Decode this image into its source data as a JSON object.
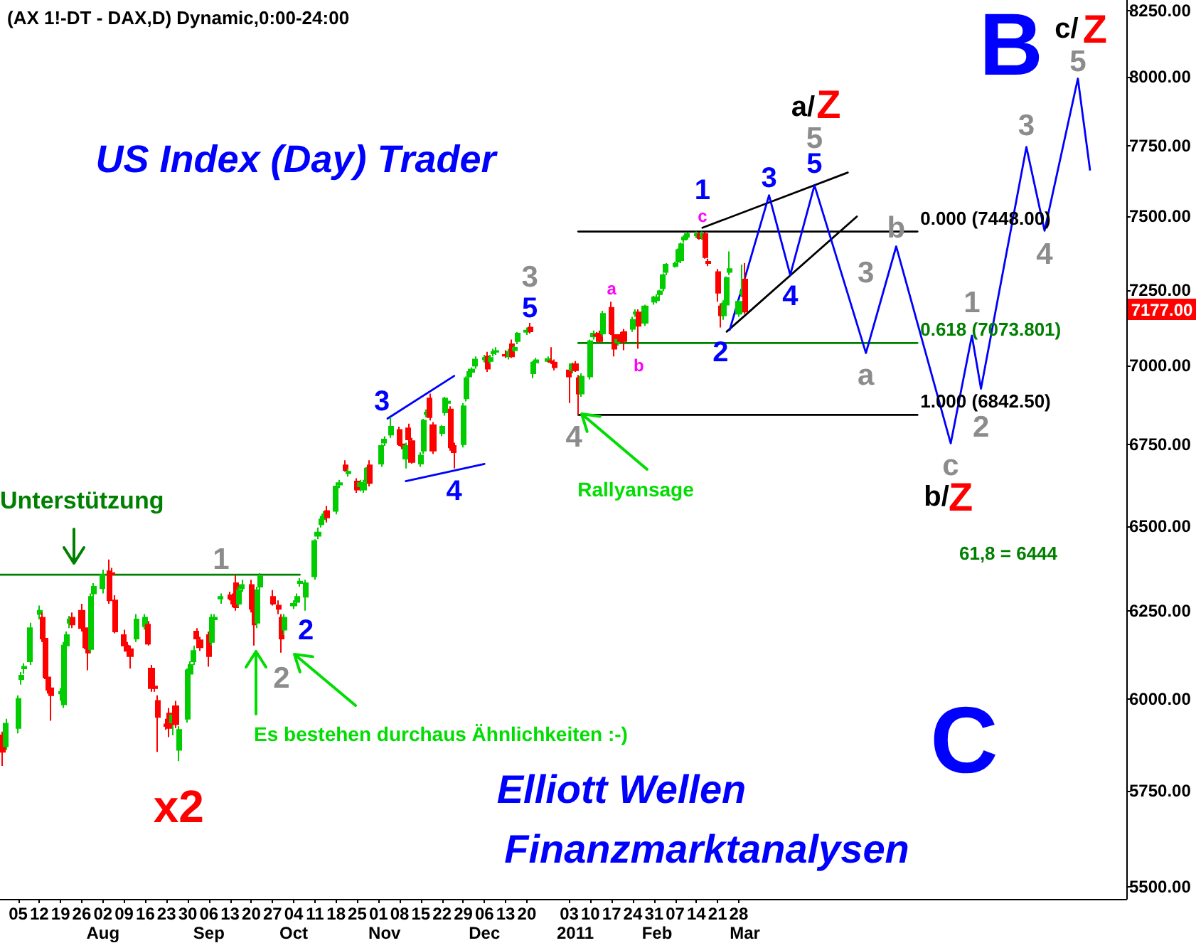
{
  "chart_data": {
    "type": "candlestick",
    "title": "(AX 1!-DT - DAX,D) Dynamic,0:00-24:00",
    "log": true,
    "marker": "none",
    "xlim": [
      "2010-06-29",
      "2011-07-06"
    ],
    "ylim": [
      5470,
      8290
    ],
    "xticks": [
      {
        "value": "2010-07-05",
        "label": "05"
      },
      {
        "value": "2010-07-12",
        "label": "12"
      },
      {
        "value": "2010-07-19",
        "label": "19"
      },
      {
        "value": "2010-07-26",
        "label": "26"
      },
      {
        "value": "2010-08-02",
        "label": "02"
      },
      {
        "value": "2010-08-09",
        "label": "09"
      },
      {
        "value": "2010-08-16",
        "label": "16"
      },
      {
        "value": "2010-08-23",
        "label": "23"
      },
      {
        "value": "2010-08-30",
        "label": "30"
      },
      {
        "value": "2010-09-06",
        "label": "06"
      },
      {
        "value": "2010-09-13",
        "label": "13"
      },
      {
        "value": "2010-09-20",
        "label": "20"
      },
      {
        "value": "2010-09-27",
        "label": "27"
      },
      {
        "value": "2010-10-04",
        "label": "04"
      },
      {
        "value": "2010-10-11",
        "label": "11"
      },
      {
        "value": "2010-10-18",
        "label": "18"
      },
      {
        "value": "2010-10-25",
        "label": "25"
      },
      {
        "value": "2010-11-01",
        "label": "01"
      },
      {
        "value": "2010-11-08",
        "label": "08"
      },
      {
        "value": "2010-11-15",
        "label": "15"
      },
      {
        "value": "2010-11-22",
        "label": "22"
      },
      {
        "value": "2010-11-29",
        "label": "29"
      },
      {
        "value": "2010-12-06",
        "label": "06"
      },
      {
        "value": "2010-12-13",
        "label": "13"
      },
      {
        "value": "2010-12-20",
        "label": "20"
      },
      {
        "value": "2011-01-03",
        "label": "03"
      },
      {
        "value": "2011-01-10",
        "label": "10"
      },
      {
        "value": "2011-01-17",
        "label": "17"
      },
      {
        "value": "2011-01-24",
        "label": "24"
      },
      {
        "value": "2011-01-31",
        "label": "31"
      },
      {
        "value": "2011-02-07",
        "label": "07"
      },
      {
        "value": "2011-02-14",
        "label": "14"
      },
      {
        "value": "2011-02-21",
        "label": "21"
      },
      {
        "value": "2011-02-28",
        "label": "28"
      }
    ],
    "x2lim": [
      "2010-06-29",
      "2011-07-06"
    ],
    "x2ticks": [
      {
        "value": "2010-08-02",
        "label": "Aug"
      },
      {
        "value": "2010-09-06",
        "label": "Sep"
      },
      {
        "value": "2010-10-04",
        "label": "Oct"
      },
      {
        "value": "2010-11-03",
        "label": "Nov"
      },
      {
        "value": "2010-12-06",
        "label": "Dec"
      },
      {
        "value": "2011-01-05",
        "label": "2011"
      },
      {
        "value": "2011-02-01",
        "label": "Feb"
      },
      {
        "value": "2011-03-02",
        "label": "Mar"
      }
    ],
    "yticks": [
      {
        "value": 5500,
        "label": "5500.00"
      },
      {
        "value": 5750,
        "label": "5750.00"
      },
      {
        "value": 6000,
        "label": "6000.00"
      },
      {
        "value": 6250,
        "label": "6250.00"
      },
      {
        "value": 6500,
        "label": "6500.00"
      },
      {
        "value": 6750,
        "label": "6750.00"
      },
      {
        "value": 7000,
        "label": "7000.00"
      },
      {
        "value": 7250,
        "label": "7250.00"
      },
      {
        "value": 7500,
        "label": "7500.00"
      },
      {
        "value": 7750,
        "label": "7750.00"
      },
      {
        "value": 8000,
        "label": "8000.00"
      },
      {
        "value": 8250,
        "label": "8250.00"
      }
    ],
    "series": [
      {
        "colors": [
          "#ff0000",
          "#00cc00",
          "#00cc00",
          "#00cc00",
          "#00cc00",
          "#00cc00",
          "#00cc00",
          "#ff0000",
          "#ff0000",
          "#ff0000",
          "#ff0000",
          "#00cc00",
          "#00cc00",
          "#00cc00",
          "#00cc00",
          "#ff0000",
          "#ff0000",
          "#ff0000",
          "#ff0000",
          "#00cc00",
          "#00cc00",
          "#00cc00",
          "#ff0000",
          "#ff0000",
          "#ff0000",
          "#ff0000",
          "#ff0000",
          "#ff0000",
          "#00cc00",
          "#00cc00",
          "#ff0000",
          "#ff0000",
          "#ff0000",
          "#ff0000",
          "#ff0000",
          "#ff0000",
          "#00cc00",
          "#ff0000",
          "#00cc00",
          "#00cc00",
          "#00cc00",
          "#00cc00",
          "#ff0000",
          "#ff0000",
          "#ff0000",
          "#00cc00",
          "#00cc00",
          "#00cc00",
          "#ff0000",
          "#ff0000",
          "#ff0000",
          "#00cc00",
          "#00cc00",
          "#ff0000",
          "#ff0000",
          "#00cc00",
          "#00cc00",
          "#ff0000",
          "#ff0000",
          "#ff0000",
          "#00cc00",
          "#00cc00",
          "#00cc00",
          "#00cc00",
          "#00cc00",
          "#00cc00",
          "#00cc00",
          "#00cc00",
          "#00cc00",
          "#ff0000",
          "#00cc00",
          "#00cc00",
          "#ff0000",
          "#00cc00",
          "#ff0000",
          "#00cc00",
          "#00cc00",
          "#00cc00",
          "#ff0000",
          "#00cc00",
          "#00cc00",
          "#00cc00",
          "#ff0000",
          "#ff0000",
          "#00cc00",
          "#ff0000",
          "#ff0000",
          "#00cc00",
          "#00cc00",
          "#00cc00",
          "#ff0000",
          "#ff0000",
          "#00cc00",
          "#00cc00",
          "#00cc00",
          "#ff0000",
          "#ff0000",
          "#00cc00",
          "#00cc00",
          "#00cc00",
          "#00cc00",
          "#00cc00",
          "#00cc00",
          "#ff0000",
          "#00cc00",
          "#00cc00",
          "#00cc00",
          "#ff0000",
          "#00cc00",
          "#ff0000",
          "#00cc00",
          "#00cc00",
          "#00cc00",
          "#ff0000",
          "#00cc00",
          "#00cc00",
          "#00cc00",
          "#ff0000",
          "#ff0000",
          "#ff0000",
          "#00cc00",
          "#ff0000",
          "#ff0000",
          "#00cc00",
          "#00cc00",
          "#00cc00",
          "#ff0000",
          "#ff0000",
          "#00cc00",
          "#ff0000",
          "#ff0000",
          "#00cc00",
          "#ff0000",
          "#ff0000",
          "#00cc00",
          "#00cc00",
          "#ff0000",
          "#00cc00",
          "#00cc00",
          "#00cc00",
          "#00cc00",
          "#00cc00",
          "#00cc00",
          "#00cc00",
          "#00cc00",
          "#00cc00",
          "#00cc00",
          "#00cc00",
          "#00cc00",
          "#ff0000",
          "#00cc00",
          "#ff0000",
          "#ff0000",
          "#ff0000",
          "#ff0000",
          "#00cc00",
          "#00cc00",
          "#00cc00",
          "#00cc00",
          "#00cc00",
          "#ff0000"
        ],
        "x": [
          "2010-06-30",
          "2010-07-01",
          "2010-07-05",
          "2010-07-06",
          "2010-07-07",
          "2010-07-09",
          "2010-07-12",
          "2010-07-13",
          "2010-07-14",
          "2010-07-15",
          "2010-07-16",
          "2010-07-19",
          "2010-07-20",
          "2010-07-21",
          "2010-07-22",
          "2010-07-23",
          "2010-07-26",
          "2010-07-27",
          "2010-07-28",
          "2010-07-29",
          "2010-07-30",
          "2010-08-02",
          "2010-08-04",
          "2010-08-05",
          "2010-08-06",
          "2010-08-09",
          "2010-08-10",
          "2010-08-11",
          "2010-08-13",
          "2010-08-16",
          "2010-08-17",
          "2010-08-18",
          "2010-08-19",
          "2010-08-20",
          "2010-08-23",
          "2010-08-24",
          "2010-08-25",
          "2010-08-26",
          "2010-08-27",
          "2010-08-30",
          "2010-08-31",
          "2010-09-01",
          "2010-09-02",
          "2010-09-03",
          "2010-09-06",
          "2010-09-07",
          "2010-09-08",
          "2010-09-10",
          "2010-09-13",
          "2010-09-14",
          "2010-09-15",
          "2010-09-16",
          "2010-09-17",
          "2010-09-20",
          "2010-09-21",
          "2010-09-22",
          "2010-09-23",
          "2010-09-27",
          "2010-09-29",
          "2010-09-30",
          "2010-10-01",
          "2010-10-04",
          "2010-10-05",
          "2010-10-06",
          "2010-10-08",
          "2010-10-11",
          "2010-10-12",
          "2010-10-13",
          "2010-10-14",
          "2010-10-15",
          "2010-10-18",
          "2010-10-19",
          "2010-10-21",
          "2010-10-22",
          "2010-10-25",
          "2010-10-26",
          "2010-10-27",
          "2010-10-28",
          "2010-10-29",
          "2010-11-02",
          "2010-11-03",
          "2010-11-05",
          "2010-11-08",
          "2010-11-09",
          "2010-11-10",
          "2010-11-11",
          "2010-11-12",
          "2010-11-15",
          "2010-11-16",
          "2010-11-17",
          "2010-11-18",
          "2010-11-19",
          "2010-11-22",
          "2010-11-23",
          "2010-11-24",
          "2010-11-25",
          "2010-11-26",
          "2010-11-29",
          "2010-11-30",
          "2010-12-01",
          "2010-12-02",
          "2010-12-03",
          "2010-12-06",
          "2010-12-07",
          "2010-12-08",
          "2010-12-09",
          "2010-12-10",
          "2010-12-13",
          "2010-12-14",
          "2010-12-15",
          "2010-12-16",
          "2010-12-17",
          "2010-12-20",
          "2010-12-21",
          "2010-12-22",
          "2010-12-23",
          "2010-12-27",
          "2010-12-28",
          "2010-12-29",
          "2011-01-03",
          "2011-01-04",
          "2011-01-05",
          "2011-01-06",
          "2011-01-07",
          "2011-01-10",
          "2011-01-11",
          "2011-01-12",
          "2011-01-13",
          "2011-01-14",
          "2011-01-17",
          "2011-01-18",
          "2011-01-19",
          "2011-01-20",
          "2011-01-21",
          "2011-01-24",
          "2011-01-25",
          "2011-01-26",
          "2011-01-28",
          "2011-01-31",
          "2011-02-01",
          "2011-02-02",
          "2011-02-03",
          "2011-02-04",
          "2011-02-07",
          "2011-02-08",
          "2011-02-09",
          "2011-02-10",
          "2011-02-11",
          "2011-02-14",
          "2011-02-15",
          "2011-02-16",
          "2011-02-17",
          "2011-02-18",
          "2011-02-21",
          "2011-02-22",
          "2011-02-23",
          "2011-02-24",
          "2011-02-25",
          "2011-02-28",
          "2011-03-01",
          "2011-03-02"
        ],
        "ohlc": [
          [
            5900,
            5910,
            5817,
            5855
          ],
          [
            5870,
            5945,
            5860,
            5932
          ],
          [
            5920,
            6010,
            5905,
            6000
          ],
          [
            6055,
            6075,
            6040,
            6065
          ],
          [
            6085,
            6100,
            6070,
            6090
          ],
          [
            6105,
            6215,
            6095,
            6200
          ],
          [
            6240,
            6265,
            6225,
            6250
          ],
          [
            6230,
            6245,
            6160,
            6170
          ],
          [
            6170,
            6180,
            6055,
            6060
          ],
          [
            6060,
            6070,
            6015,
            6025
          ],
          [
            6030,
            6040,
            5940,
            6010
          ],
          [
            6015,
            6030,
            5995,
            6020
          ],
          [
            5985,
            6160,
            5975,
            6150
          ],
          [
            6150,
            6190,
            6140,
            6180
          ],
          [
            6215,
            6235,
            6200,
            6225
          ],
          [
            6230,
            6245,
            6200,
            6210
          ],
          [
            6250,
            6270,
            6190,
            6200
          ],
          [
            6200,
            6215,
            6140,
            6145
          ],
          [
            6170,
            6185,
            6080,
            6130
          ],
          [
            6140,
            6300,
            6130,
            6290
          ],
          [
            6300,
            6330,
            6290,
            6320
          ],
          [
            6315,
            6370,
            6300,
            6355
          ],
          [
            6365,
            6400,
            6270,
            6280
          ],
          [
            6360,
            6375,
            6345,
            6355
          ],
          [
            6280,
            6295,
            6185,
            6190
          ],
          [
            6180,
            6195,
            6145,
            6150
          ],
          [
            6150,
            6160,
            6120,
            6135
          ],
          [
            6140,
            6150,
            6085,
            6120
          ],
          [
            6170,
            6240,
            6160,
            6225
          ],
          [
            6205,
            6240,
            6195,
            6230
          ],
          [
            6210,
            6220,
            6150,
            6155
          ],
          [
            6085,
            6095,
            6020,
            6030
          ],
          [
            6035,
            6045,
            6020,
            6030
          ],
          [
            5995,
            6010,
            5855,
            5950
          ],
          [
            5930,
            5945,
            5915,
            5925
          ],
          [
            5960,
            5975,
            5895,
            5920
          ],
          [
            5935,
            5965,
            5900,
            5955
          ],
          [
            5980,
            5995,
            5920,
            5930
          ],
          [
            5860,
            5925,
            5830,
            5915
          ],
          [
            5945,
            6085,
            5935,
            6080
          ],
          [
            6070,
            6105,
            6060,
            6095
          ],
          [
            6105,
            6150,
            6095,
            6135
          ],
          [
            6190,
            6200,
            6165,
            6170
          ],
          [
            6165,
            6175,
            6135,
            6145
          ],
          [
            6180,
            6190,
            6090,
            6120
          ],
          [
            6160,
            6240,
            6150,
            6230
          ],
          [
            6225,
            6240,
            6215,
            6230
          ],
          [
            6285,
            6300,
            6270,
            6290
          ],
          [
            6295,
            6305,
            6280,
            6285
          ],
          [
            6285,
            6300,
            6260,
            6270
          ],
          [
            6330,
            6355,
            6250,
            6260
          ],
          [
            6270,
            6320,
            6260,
            6310
          ],
          [
            6315,
            6340,
            6305,
            6325
          ],
          [
            6325,
            6340,
            6245,
            6255
          ],
          [
            6270,
            6285,
            6150,
            6210
          ],
          [
            6215,
            6320,
            6200,
            6310
          ],
          [
            6320,
            6360,
            6310,
            6350
          ],
          [
            6290,
            6310,
            6265,
            6270
          ],
          [
            6265,
            6280,
            6240,
            6255
          ],
          [
            6230,
            6240,
            6130,
            6170
          ],
          [
            6195,
            6240,
            6180,
            6230
          ],
          [
            6265,
            6280,
            6255,
            6270
          ],
          [
            6275,
            6300,
            6265,
            6290
          ],
          [
            6330,
            6345,
            6320,
            6335
          ],
          [
            6290,
            6340,
            6250,
            6330
          ],
          [
            6350,
            6460,
            6340,
            6455
          ],
          [
            6470,
            6495,
            6460,
            6480
          ],
          [
            6505,
            6530,
            6495,
            6520
          ],
          [
            6520,
            6545,
            6505,
            6535
          ],
          [
            6545,
            6560,
            6510,
            6525
          ],
          [
            6545,
            6630,
            6535,
            6620
          ],
          [
            6625,
            6640,
            6615,
            6630
          ],
          [
            6685,
            6700,
            6665,
            6670
          ],
          [
            6660,
            6675,
            6650,
            6665
          ],
          [
            6635,
            6645,
            6600,
            6610
          ],
          [
            6620,
            6640,
            6605,
            6630
          ],
          [
            6610,
            6640,
            6600,
            6630
          ],
          [
            6635,
            6680,
            6625,
            6675
          ],
          [
            6685,
            6700,
            6620,
            6630
          ],
          [
            6690,
            6750,
            6680,
            6745
          ],
          [
            6755,
            6775,
            6745,
            6765
          ],
          [
            6780,
            6835,
            6770,
            6805
          ],
          [
            6795,
            6805,
            6745,
            6750
          ],
          [
            6750,
            6765,
            6735,
            6745
          ],
          [
            6705,
            6755,
            6675,
            6745
          ],
          [
            6800,
            6815,
            6760,
            6765
          ],
          [
            6760,
            6770,
            6690,
            6695
          ],
          [
            6690,
            6725,
            6680,
            6715
          ],
          [
            6730,
            6830,
            6720,
            6825
          ],
          [
            6845,
            6860,
            6835,
            6850
          ],
          [
            6895,
            6910,
            6825,
            6835
          ],
          [
            6810,
            6820,
            6720,
            6730
          ],
          [
            6785,
            6810,
            6775,
            6805
          ],
          [
            6850,
            6900,
            6840,
            6895
          ],
          [
            6880,
            6895,
            6870,
            6885
          ],
          [
            6860,
            6870,
            6730,
            6740
          ],
          [
            6745,
            6755,
            6675,
            6725
          ],
          [
            6750,
            6880,
            6740,
            6870
          ],
          [
            6895,
            6965,
            6885,
            6960
          ],
          [
            6965,
            6990,
            6955,
            6980
          ],
          [
            6980,
            6995,
            6970,
            6988
          ],
          [
            7000,
            7030,
            6990,
            7020
          ],
          [
            7020,
            7035,
            7010,
            7025
          ],
          [
            7030,
            7045,
            6980,
            6990
          ],
          [
            7015,
            7035,
            7005,
            7025
          ],
          [
            7040,
            7055,
            7030,
            7045
          ],
          [
            7045,
            7060,
            7035,
            7048
          ],
          [
            7035,
            7050,
            7025,
            7032
          ],
          [
            7030,
            7055,
            7020,
            7045
          ],
          [
            7070,
            7085,
            7025,
            7030
          ],
          [
            7050,
            7065,
            7045,
            7058
          ],
          [
            7080,
            7110,
            7070,
            7105
          ],
          [
            7110,
            7125,
            7100,
            7115
          ],
          [
            7125,
            7140,
            7105,
            7112
          ],
          [
            6975,
            7015,
            6960,
            7010
          ],
          [
            7010,
            7025,
            7005,
            7018
          ],
          [
            7015,
            7030,
            7010,
            7022
          ],
          [
            7015,
            7060,
            7005,
            7012
          ],
          [
            7010,
            7020,
            6985,
            6995
          ],
          [
            6985,
            6995,
            6880,
            6965
          ],
          [
            6985,
            7010,
            6975,
            7005
          ],
          [
            7005,
            7015,
            6980,
            6985
          ],
          [
            6960,
            6970,
            6842.5,
            6910
          ],
          [
            6910,
            6975,
            6900,
            6965
          ],
          [
            6965,
            7085,
            6955,
            7080
          ],
          [
            7095,
            7115,
            7085,
            7105
          ],
          [
            7100,
            7110,
            7090,
            7098
          ],
          [
            7105,
            7115,
            7075,
            7080
          ],
          [
            7105,
            7180,
            7095,
            7170
          ],
          [
            7190,
            7210,
            7100,
            7105
          ],
          [
            7100,
            7110,
            7030,
            7055
          ],
          [
            7075,
            7090,
            7065,
            7085
          ],
          [
            7100,
            7110,
            7075,
            7080
          ],
          [
            7110,
            7120,
            7050,
            7080
          ],
          [
            7120,
            7160,
            7110,
            7150
          ],
          [
            7170,
            7185,
            7160,
            7175
          ],
          [
            7175,
            7185,
            7055,
            7130
          ],
          [
            7140,
            7200,
            7130,
            7195
          ],
          [
            7210,
            7230,
            7200,
            7225
          ],
          [
            7215,
            7235,
            7205,
            7225
          ],
          [
            7235,
            7250,
            7225,
            7245
          ],
          [
            7255,
            7305,
            7245,
            7300
          ],
          [
            7310,
            7340,
            7300,
            7335
          ],
          [
            7330,
            7345,
            7325,
            7338
          ],
          [
            7345,
            7390,
            7335,
            7385
          ],
          [
            7350,
            7410,
            7340,
            7405
          ],
          [
            7420,
            7435,
            7410,
            7428
          ],
          [
            7430,
            7445,
            7420,
            7440
          ],
          [
            7435,
            7448,
            7425,
            7440
          ],
          [
            7440,
            7445,
            7420,
            7425
          ],
          [
            7430,
            7448,
            7420,
            7440
          ],
          [
            7440,
            7445,
            7355,
            7360
          ],
          [
            7345,
            7355,
            7330,
            7340
          ],
          [
            7310,
            7320,
            7210,
            7240
          ],
          [
            7195,
            7205,
            7125,
            7165
          ],
          [
            7165,
            7215,
            7150,
            7205
          ],
          [
            7200,
            7295,
            7190,
            7290
          ],
          [
            7310,
            7380,
            7300,
            7320
          ],
          [
            7170,
            7215,
            7160,
            7210
          ],
          [
            7235,
            7335,
            7225,
            7245
          ],
          [
            7285,
            7340,
            7170,
            7177
          ]
        ]
      },
      {
        "type": "line",
        "color": "#008000",
        "x": [
          "2010-06-29",
          "2010-10-06"
        ],
        "values": [
          6355,
          6355
        ]
      },
      {
        "type": "line",
        "color": "#000000",
        "x": [
          "2011-01-06",
          "2011-04-28"
        ],
        "values": [
          7448,
          7448
        ]
      },
      {
        "type": "line",
        "color": "#008000",
        "x": [
          "2011-01-06",
          "2011-04-28"
        ],
        "values": [
          7073.801,
          7073.801
        ]
      },
      {
        "type": "line",
        "color": "#000000",
        "x": [
          "2011-01-06",
          "2011-04-28"
        ],
        "values": [
          6842.5,
          6842.5
        ]
      },
      {
        "type": "line",
        "color": "#0000ff",
        "x": [
          "2010-11-04",
          "2010-11-26"
        ],
        "values": [
          6831,
          6967
        ]
      },
      {
        "type": "line",
        "color": "#0000ff",
        "x": [
          "2010-11-10",
          "2010-12-06"
        ],
        "values": [
          6636,
          6689
        ]
      },
      {
        "type": "line",
        "color": "#000000",
        "x": [
          "2011-02-16",
          "2011-04-05"
        ],
        "values": [
          7461,
          7654
        ]
      },
      {
        "type": "line",
        "color": "#000000",
        "x": [
          "2011-02-24",
          "2011-04-08"
        ],
        "values": [
          7111,
          7500
        ]
      },
      {
        "type": "line",
        "color": "#0000ff",
        "x": [
          "2011-02-25",
          "2011-03-10",
          "2011-03-17",
          "2011-03-25",
          "2011-04-11",
          "2011-04-21",
          "2011-05-09",
          "2011-05-16",
          "2011-05-19",
          "2011-06-03",
          "2011-06-09",
          "2011-06-20",
          "2011-06-24"
        ],
        "values": [
          7117,
          7574,
          7300,
          7609,
          7041,
          7397,
          6753,
          7098,
          6926,
          7745,
          7451,
          7994,
          7664
        ]
      }
    ],
    "annotations": [
      "US Index (Day) Trader",
      "Elliott Wellen",
      "Finanzmarktanalysen",
      "Unterstützung",
      "Rallyansage",
      "Es bestehen durchaus Ähnlichkeiten :-)",
      "61,8 = 6444",
      "B",
      "C",
      {
        "text": "x2",
        "x": "2010-08-27",
        "y": 5830
      },
      {
        "text": "1",
        "x": "2010-09-10",
        "y": 6300
      },
      {
        "text": "2",
        "x": "2010-09-30",
        "y": 6130
      },
      {
        "text": "2",
        "x": "2010-10-08",
        "y": 6250
      },
      {
        "text": "3",
        "x": "2010-11-04",
        "y": 6831
      },
      {
        "text": "4",
        "x": "2010-11-26",
        "y": 6675
      },
      {
        "text": "3",
        "x": "2010-12-21",
        "y": 7140
      },
      {
        "text": "5",
        "x": "2010-12-21",
        "y": 7140
      },
      {
        "text": "4",
        "x": "2011-01-06",
        "y": 6842.5
      },
      {
        "text": "a",
        "x": "2011-01-17",
        "y": 7210
      },
      {
        "text": "b",
        "x": "2011-01-26",
        "y": 7055
      },
      {
        "text": "c",
        "x": "2011-02-16",
        "y": 7448
      },
      {
        "text": "1",
        "x": "2011-02-16",
        "y": 7448
      },
      {
        "text": "2",
        "x": "2011-02-22",
        "y": 7125
      },
      {
        "text": "3",
        "x": "2011-03-10",
        "y": 7574
      },
      {
        "text": "4",
        "x": "2011-03-17",
        "y": 7300
      },
      {
        "text": "5",
        "x": "2011-03-25",
        "y": 7609
      },
      {
        "text": "5",
        "x": "2011-03-25",
        "y": 7609
      },
      {
        "text": "a/",
        "x": "2011-03-25",
        "y": 7609
      },
      {
        "text": "Z",
        "x": "2011-03-25",
        "y": 7609
      },
      {
        "text": "3",
        "x": "2011-04-11",
        "y": 7041
      },
      {
        "text": "a",
        "x": "2011-04-11",
        "y": 7041
      },
      {
        "text": "b",
        "x": "2011-04-21",
        "y": 7397
      },
      {
        "text": "c",
        "x": "2011-05-09",
        "y": 6753
      },
      {
        "text": "b/",
        "x": "2011-05-09",
        "y": 6753
      },
      {
        "text": "Z",
        "x": "2011-05-09",
        "y": 6753
      },
      {
        "text": "1",
        "x": "2011-05-16",
        "y": 7098
      },
      {
        "text": "2",
        "x": "2011-05-19",
        "y": 6926
      },
      {
        "text": "3",
        "x": "2011-06-03",
        "y": 7745
      },
      {
        "text": "4",
        "x": "2011-06-09",
        "y": 7451
      },
      {
        "text": "5",
        "x": "2011-06-20",
        "y": 7994
      },
      {
        "text": "c/",
        "x": "2011-06-20",
        "y": 7994
      },
      {
        "text": "Z",
        "x": "2011-06-20",
        "y": 7994
      },
      {
        "text": "0.000 (7448.00)",
        "x": "2011-04-28",
        "y": 7448
      },
      {
        "text": "0.618 (7073.801)",
        "x": "2011-04-28",
        "y": 7073.801
      },
      {
        "text": "1.000 (6842.50)",
        "x": "2011-04-28",
        "y": 6842.5
      },
      "7177.00"
    ]
  }
}
